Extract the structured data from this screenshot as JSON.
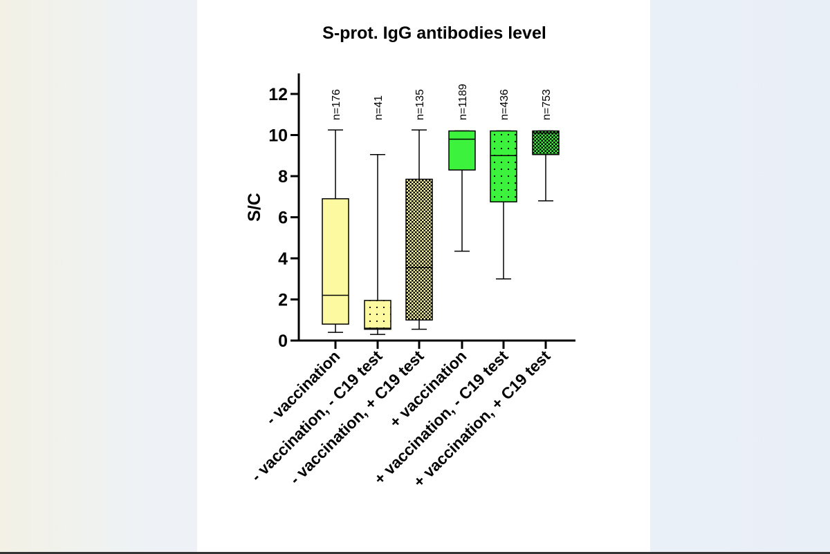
{
  "chart_data": {
    "type": "boxplot",
    "title": "S-prot. IgG antibodies level",
    "xlabel": "",
    "ylabel": "S/C",
    "ylim": [
      0,
      13
    ],
    "yticks": [
      0,
      2,
      4,
      6,
      8,
      10,
      12
    ],
    "grid": false,
    "colors": {
      "yellow": "#fdf9a0",
      "green": "#3cf23c"
    },
    "groups": [
      {
        "label": "- vaccination",
        "n_label": "n=176",
        "min": 0.4,
        "q1": 0.8,
        "median": 2.2,
        "q3": 6.9,
        "max": 10.25,
        "color": "yellow",
        "pattern": "none"
      },
      {
        "label": "- vaccination, - C19 test",
        "n_label": "n=41",
        "min": 0.3,
        "q1": 0.55,
        "median": 0.6,
        "q3": 1.95,
        "max": 9.05,
        "color": "yellow",
        "pattern": "dots"
      },
      {
        "label": "- vaccination, + C19 test",
        "n_label": "n=135",
        "min": 0.55,
        "q1": 1.0,
        "median": 3.55,
        "q3": 7.85,
        "max": 10.25,
        "color": "yellow",
        "pattern": "checker"
      },
      {
        "label": "+ vaccination",
        "n_label": "n=1189",
        "min": 4.35,
        "q1": 8.3,
        "median": 9.8,
        "q3": 10.2,
        "max": 10.2,
        "color": "green",
        "pattern": "none"
      },
      {
        "label": "+ vaccination, - C19 test",
        "n_label": "n=436",
        "min": 3.0,
        "q1": 6.75,
        "median": 9.0,
        "q3": 10.2,
        "max": 10.2,
        "color": "green",
        "pattern": "dots"
      },
      {
        "label": "+ vaccination, + C19 test",
        "n_label": "n=753",
        "min": 6.8,
        "q1": 9.05,
        "median": 10.1,
        "q3": 10.2,
        "max": 10.2,
        "color": "green",
        "pattern": "checker"
      }
    ]
  }
}
